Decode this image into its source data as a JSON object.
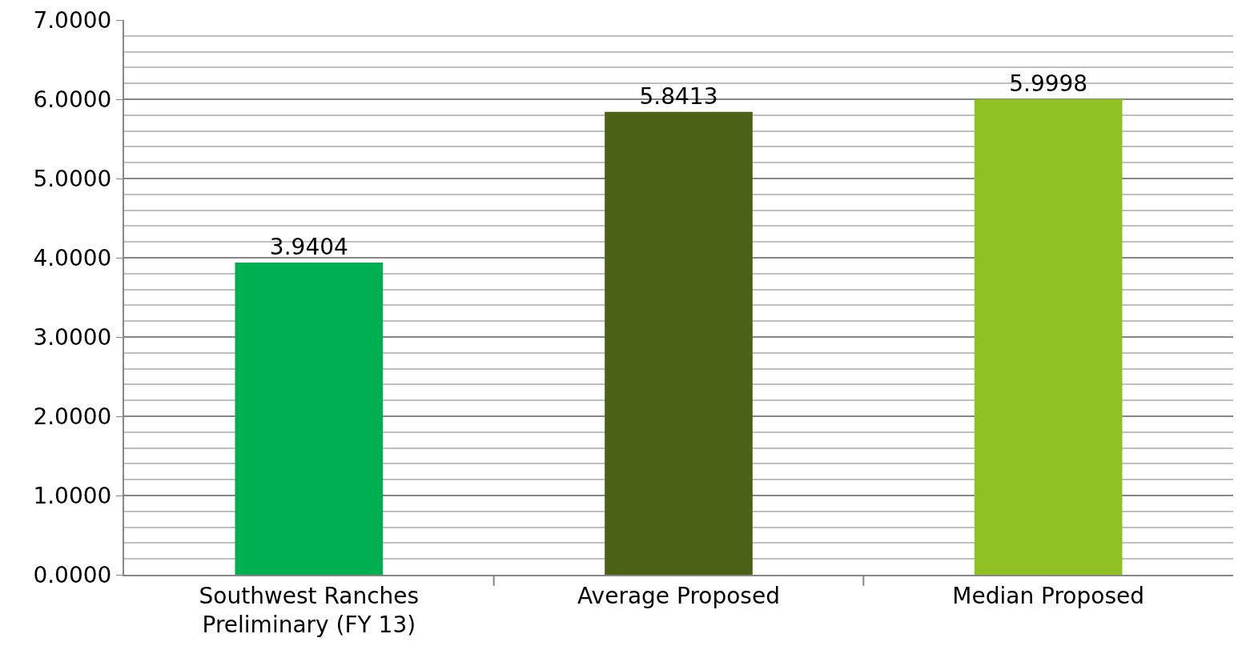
{
  "chart_data": {
    "type": "bar",
    "categories": [
      "Southwest Ranches Preliminary (FY 13)",
      "Average Proposed",
      "Median Proposed"
    ],
    "values": [
      3.9404,
      5.8413,
      5.9998
    ],
    "colors": [
      "#00b050",
      "#4a6116",
      "#8fc125"
    ],
    "value_labels": [
      "3.9404",
      "5.8413",
      "5.9998"
    ],
    "ylim": [
      0,
      7
    ],
    "yticks": [
      {
        "value": 0,
        "label": "0.0000"
      },
      {
        "value": 0.2,
        "label": null
      },
      {
        "value": 0.4,
        "label": null
      },
      {
        "value": 0.6,
        "label": null
      },
      {
        "value": 0.8,
        "label": null
      },
      {
        "value": 1,
        "label": "1.0000"
      },
      {
        "value": 1.2,
        "label": null
      },
      {
        "value": 1.4,
        "label": null
      },
      {
        "value": 1.6,
        "label": null
      },
      {
        "value": 1.8,
        "label": null
      },
      {
        "value": 2,
        "label": "2.0000"
      },
      {
        "value": 2.2,
        "label": null
      },
      {
        "value": 2.4,
        "label": null
      },
      {
        "value": 2.6,
        "label": null
      },
      {
        "value": 2.8,
        "label": null
      },
      {
        "value": 3,
        "label": "3.0000"
      },
      {
        "value": 3.2,
        "label": null
      },
      {
        "value": 3.4,
        "label": null
      },
      {
        "value": 3.6,
        "label": null
      },
      {
        "value": 3.8,
        "label": null
      },
      {
        "value": 4,
        "label": "4.0000"
      },
      {
        "value": 4.2,
        "label": null
      },
      {
        "value": 4.4,
        "label": null
      },
      {
        "value": 4.6,
        "label": null
      },
      {
        "value": 4.8,
        "label": null
      },
      {
        "value": 5,
        "label": "5.0000"
      },
      {
        "value": 5.2,
        "label": null
      },
      {
        "value": 5.4,
        "label": null
      },
      {
        "value": 5.6,
        "label": null
      },
      {
        "value": 5.8,
        "label": null
      },
      {
        "value": 6,
        "label": "6.0000"
      },
      {
        "value": 6.2,
        "label": null
      },
      {
        "value": 6.4,
        "label": null
      },
      {
        "value": 6.6,
        "label": null
      },
      {
        "value": 6.8,
        "label": null
      },
      {
        "value": 7,
        "label": "7.0000"
      }
    ],
    "grid": "y"
  }
}
